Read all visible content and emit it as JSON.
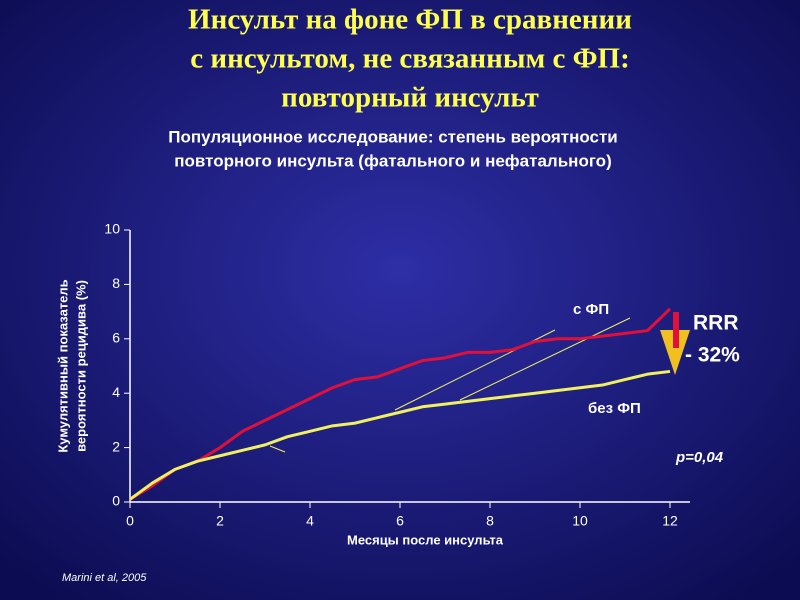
{
  "chart_data": {
    "type": "line",
    "title": [
      "Инсульт на фоне ФП в сравнении",
      "с инсультом, не связанным с ФП:",
      "повторный инсульт"
    ],
    "subtitle": [
      "Популяционное исследование: степень вероятности",
      "повторного инсульта (фатального и нефатального)"
    ],
    "x_label": "Месяцы после инсульта",
    "y_label": [
      "Кумулятивный показатель",
      "вероятности рецидива (%)"
    ],
    "x": [
      0,
      0.5,
      1,
      1.5,
      2,
      2.5,
      3,
      3.5,
      4,
      4.5,
      5,
      5.5,
      6,
      6.5,
      7,
      7.5,
      8,
      8.5,
      9,
      9.5,
      10,
      10.5,
      11,
      11.5,
      12
    ],
    "series": [
      {
        "name": "с ФП",
        "color": "#e0103a",
        "values": [
          0.1,
          0.6,
          1.2,
          1.5,
          2.0,
          2.6,
          3.0,
          3.4,
          3.8,
          4.2,
          4.5,
          4.6,
          4.9,
          5.2,
          5.3,
          5.5,
          5.5,
          5.6,
          5.9,
          6.0,
          6.0,
          6.1,
          6.2,
          6.3,
          7.1
        ]
      },
      {
        "name": "без ФП",
        "color": "#f0f060",
        "values": [
          0.1,
          0.7,
          1.2,
          1.5,
          1.7,
          1.9,
          2.1,
          2.4,
          2.6,
          2.8,
          2.9,
          3.1,
          3.3,
          3.5,
          3.6,
          3.7,
          3.8,
          3.9,
          4.0,
          4.1,
          4.2,
          4.3,
          4.5,
          4.7,
          4.8
        ]
      }
    ],
    "xlim": [
      0,
      12
    ],
    "xticks": [
      0,
      2,
      4,
      6,
      8,
      10,
      12
    ],
    "ylim": [
      0,
      10
    ],
    "yticks": [
      0,
      2,
      4,
      6,
      8,
      10
    ],
    "annotations": {
      "rrr": "RRR",
      "reduction": "- 32%",
      "p_value": "p=0,04"
    },
    "source": "Marini et al, 2005"
  }
}
